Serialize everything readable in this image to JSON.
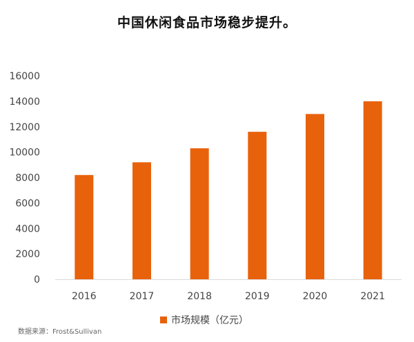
{
  "colors": {
    "bar": "#E8620C",
    "axis": "#D9D9D9"
  },
  "source_note": "数据来源：Frost&Sullivan",
  "chart_data": {
    "type": "bar",
    "title": "中国休闲食品市场稳步提升。",
    "categories": [
      "2016",
      "2017",
      "2018",
      "2019",
      "2020",
      "2021"
    ],
    "series": [
      {
        "name": "市场规模（亿元）",
        "values": [
          8200,
          9200,
          10300,
          11600,
          13000,
          14000
        ]
      }
    ],
    "ylim": [
      0,
      16000
    ],
    "yticks": [
      0,
      2000,
      4000,
      6000,
      8000,
      10000,
      12000,
      14000,
      16000
    ],
    "xlabel": "",
    "ylabel": "",
    "grid": false,
    "legend_position": "bottom"
  }
}
